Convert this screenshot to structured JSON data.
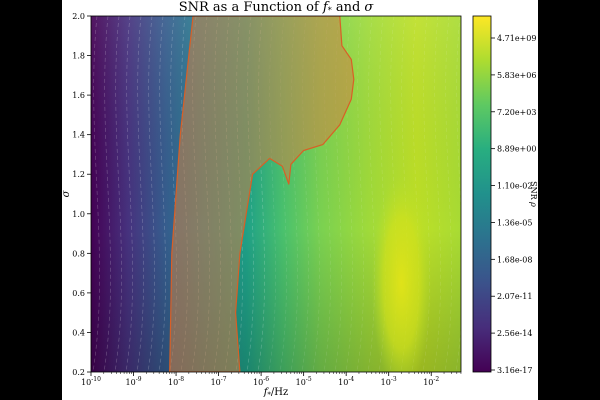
{
  "chart_data": {
    "type": "heatmap",
    "title": "SNR as a Function of f* and σ",
    "xlabel": "f*/Hz",
    "ylabel": "σ",
    "x_scale": "log",
    "xlim_log10": [
      -10,
      -1.3
    ],
    "ylim": [
      0.2,
      2.0
    ],
    "x_ticks": [
      {
        "log10": -10,
        "label": "10^-10"
      },
      {
        "log10": -9,
        "label": "10^-9"
      },
      {
        "log10": -8,
        "label": "10^-8"
      },
      {
        "log10": -7,
        "label": "10^-7"
      },
      {
        "log10": -6,
        "label": "10^-6"
      },
      {
        "log10": -5,
        "label": "10^-5"
      },
      {
        "log10": -4,
        "label": "10^-4"
      },
      {
        "log10": -3,
        "label": "10^-3"
      },
      {
        "log10": -2,
        "label": "10^-2"
      }
    ],
    "y_ticks": [
      "0.2",
      "0.4",
      "0.6",
      "0.8",
      "1.0",
      "1.2",
      "1.4",
      "1.6",
      "1.8",
      "2.0"
    ],
    "colorbar": {
      "label": "SNR ρ",
      "colormap": "viridis",
      "scale": "log",
      "ticks": [
        "4.71e+09",
        "5.83e+06",
        "7.20e+03",
        "8.89e+00",
        "1.10e-02",
        "1.36e-05",
        "1.68e-08",
        "2.07e-11",
        "2.56e-14",
        "3.16e-17"
      ]
    },
    "peak_region": {
      "x_log10": -2.7,
      "y": 0.65
    },
    "shaded_region": {
      "fill_color": "#cd7f45",
      "edge_color": "#d95f26",
      "opacity": 0.55,
      "boundary": [
        {
          "x_log10": -7.6,
          "y": 2.0
        },
        {
          "x_log10": -4.15,
          "y": 2.0
        },
        {
          "x_log10": -4.1,
          "y": 1.85
        },
        {
          "x_log10": -3.88,
          "y": 1.78
        },
        {
          "x_log10": -3.82,
          "y": 1.68
        },
        {
          "x_log10": -3.88,
          "y": 1.58
        },
        {
          "x_log10": -4.15,
          "y": 1.45
        },
        {
          "x_log10": -4.55,
          "y": 1.35
        },
        {
          "x_log10": -5.0,
          "y": 1.32
        },
        {
          "x_log10": -5.3,
          "y": 1.25
        },
        {
          "x_log10": -5.35,
          "y": 1.15
        },
        {
          "x_log10": -5.5,
          "y": 1.24
        },
        {
          "x_log10": -5.8,
          "y": 1.28
        },
        {
          "x_log10": -6.2,
          "y": 1.2
        },
        {
          "x_log10": -6.35,
          "y": 1.0
        },
        {
          "x_log10": -6.5,
          "y": 0.8
        },
        {
          "x_log10": -6.6,
          "y": 0.5
        },
        {
          "x_log10": -6.5,
          "y": 0.2
        },
        {
          "x_log10": -8.15,
          "y": 0.2
        },
        {
          "x_log10": -8.1,
          "y": 0.8
        },
        {
          "x_log10": -7.9,
          "y": 1.4
        },
        {
          "x_log10": -7.7,
          "y": 1.8
        }
      ]
    }
  }
}
